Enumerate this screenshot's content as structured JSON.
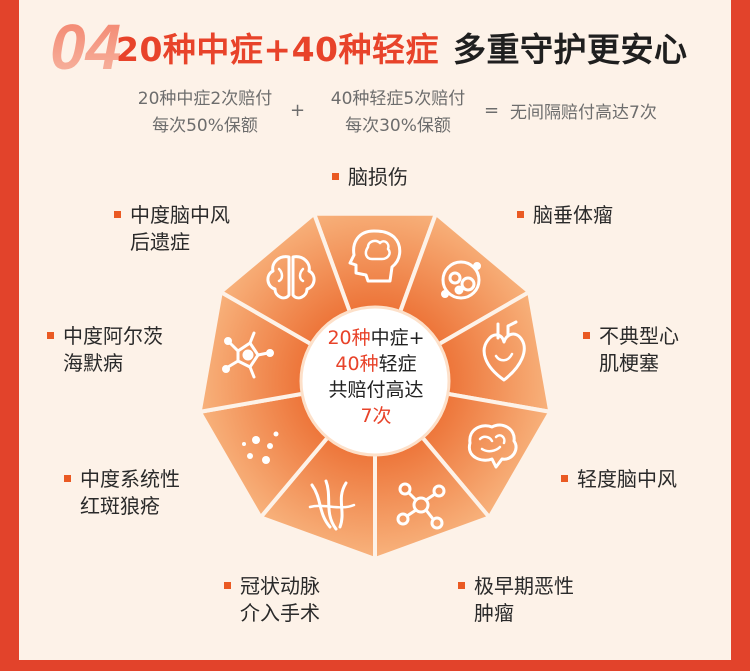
{
  "section_number": "04",
  "headline": {
    "part1": "20种中症+40种轻症",
    "part2": "多重守护更安心"
  },
  "formula": {
    "left_line1": "20种中症2次赔付",
    "left_line2": "每次50%保额",
    "plus": "+",
    "middle_line1": "40种轻症5次赔付",
    "middle_line2": "每次30%保额",
    "equals": "=",
    "result": "无间隔赔付高达7次"
  },
  "center": {
    "line1_num": "20种",
    "line1_text": "中症+",
    "line2_num": "40种",
    "line2_text": "轻症",
    "line3": "共赔付高达",
    "line4": "7次"
  },
  "conditions": [
    {
      "line1": "脑损伤",
      "line2": "",
      "icon": "head-brain-icon"
    },
    {
      "line1": "脑垂体瘤",
      "line2": "",
      "icon": "pituitary-icon"
    },
    {
      "line1": "不典型心",
      "line2": "肌梗塞",
      "icon": "heart-icon"
    },
    {
      "line1": "轻度脑中风",
      "line2": "",
      "icon": "brain-icon"
    },
    {
      "line1": "极早期恶性",
      "line2": "肿瘤",
      "icon": "molecule-icon"
    },
    {
      "line1": "冠状动脉",
      "line2": "介入手术",
      "icon": "artery-icon"
    },
    {
      "line1": "中度系统性",
      "line2": "红斑狼疮",
      "icon": "dots-icon"
    },
    {
      "line1": "中度阿尔茨",
      "line2": "海默病",
      "icon": "neuron-icon"
    },
    {
      "line1": "中度脑中风",
      "line2": "后遗症",
      "icon": "brain-lobes-icon"
    }
  ],
  "colors": {
    "background_frame": "#e2432b",
    "panel": "#fdf2e8",
    "accent": "#e8432a",
    "segment_light": "#f7b27a",
    "segment_dark": "#ee7a3d"
  }
}
